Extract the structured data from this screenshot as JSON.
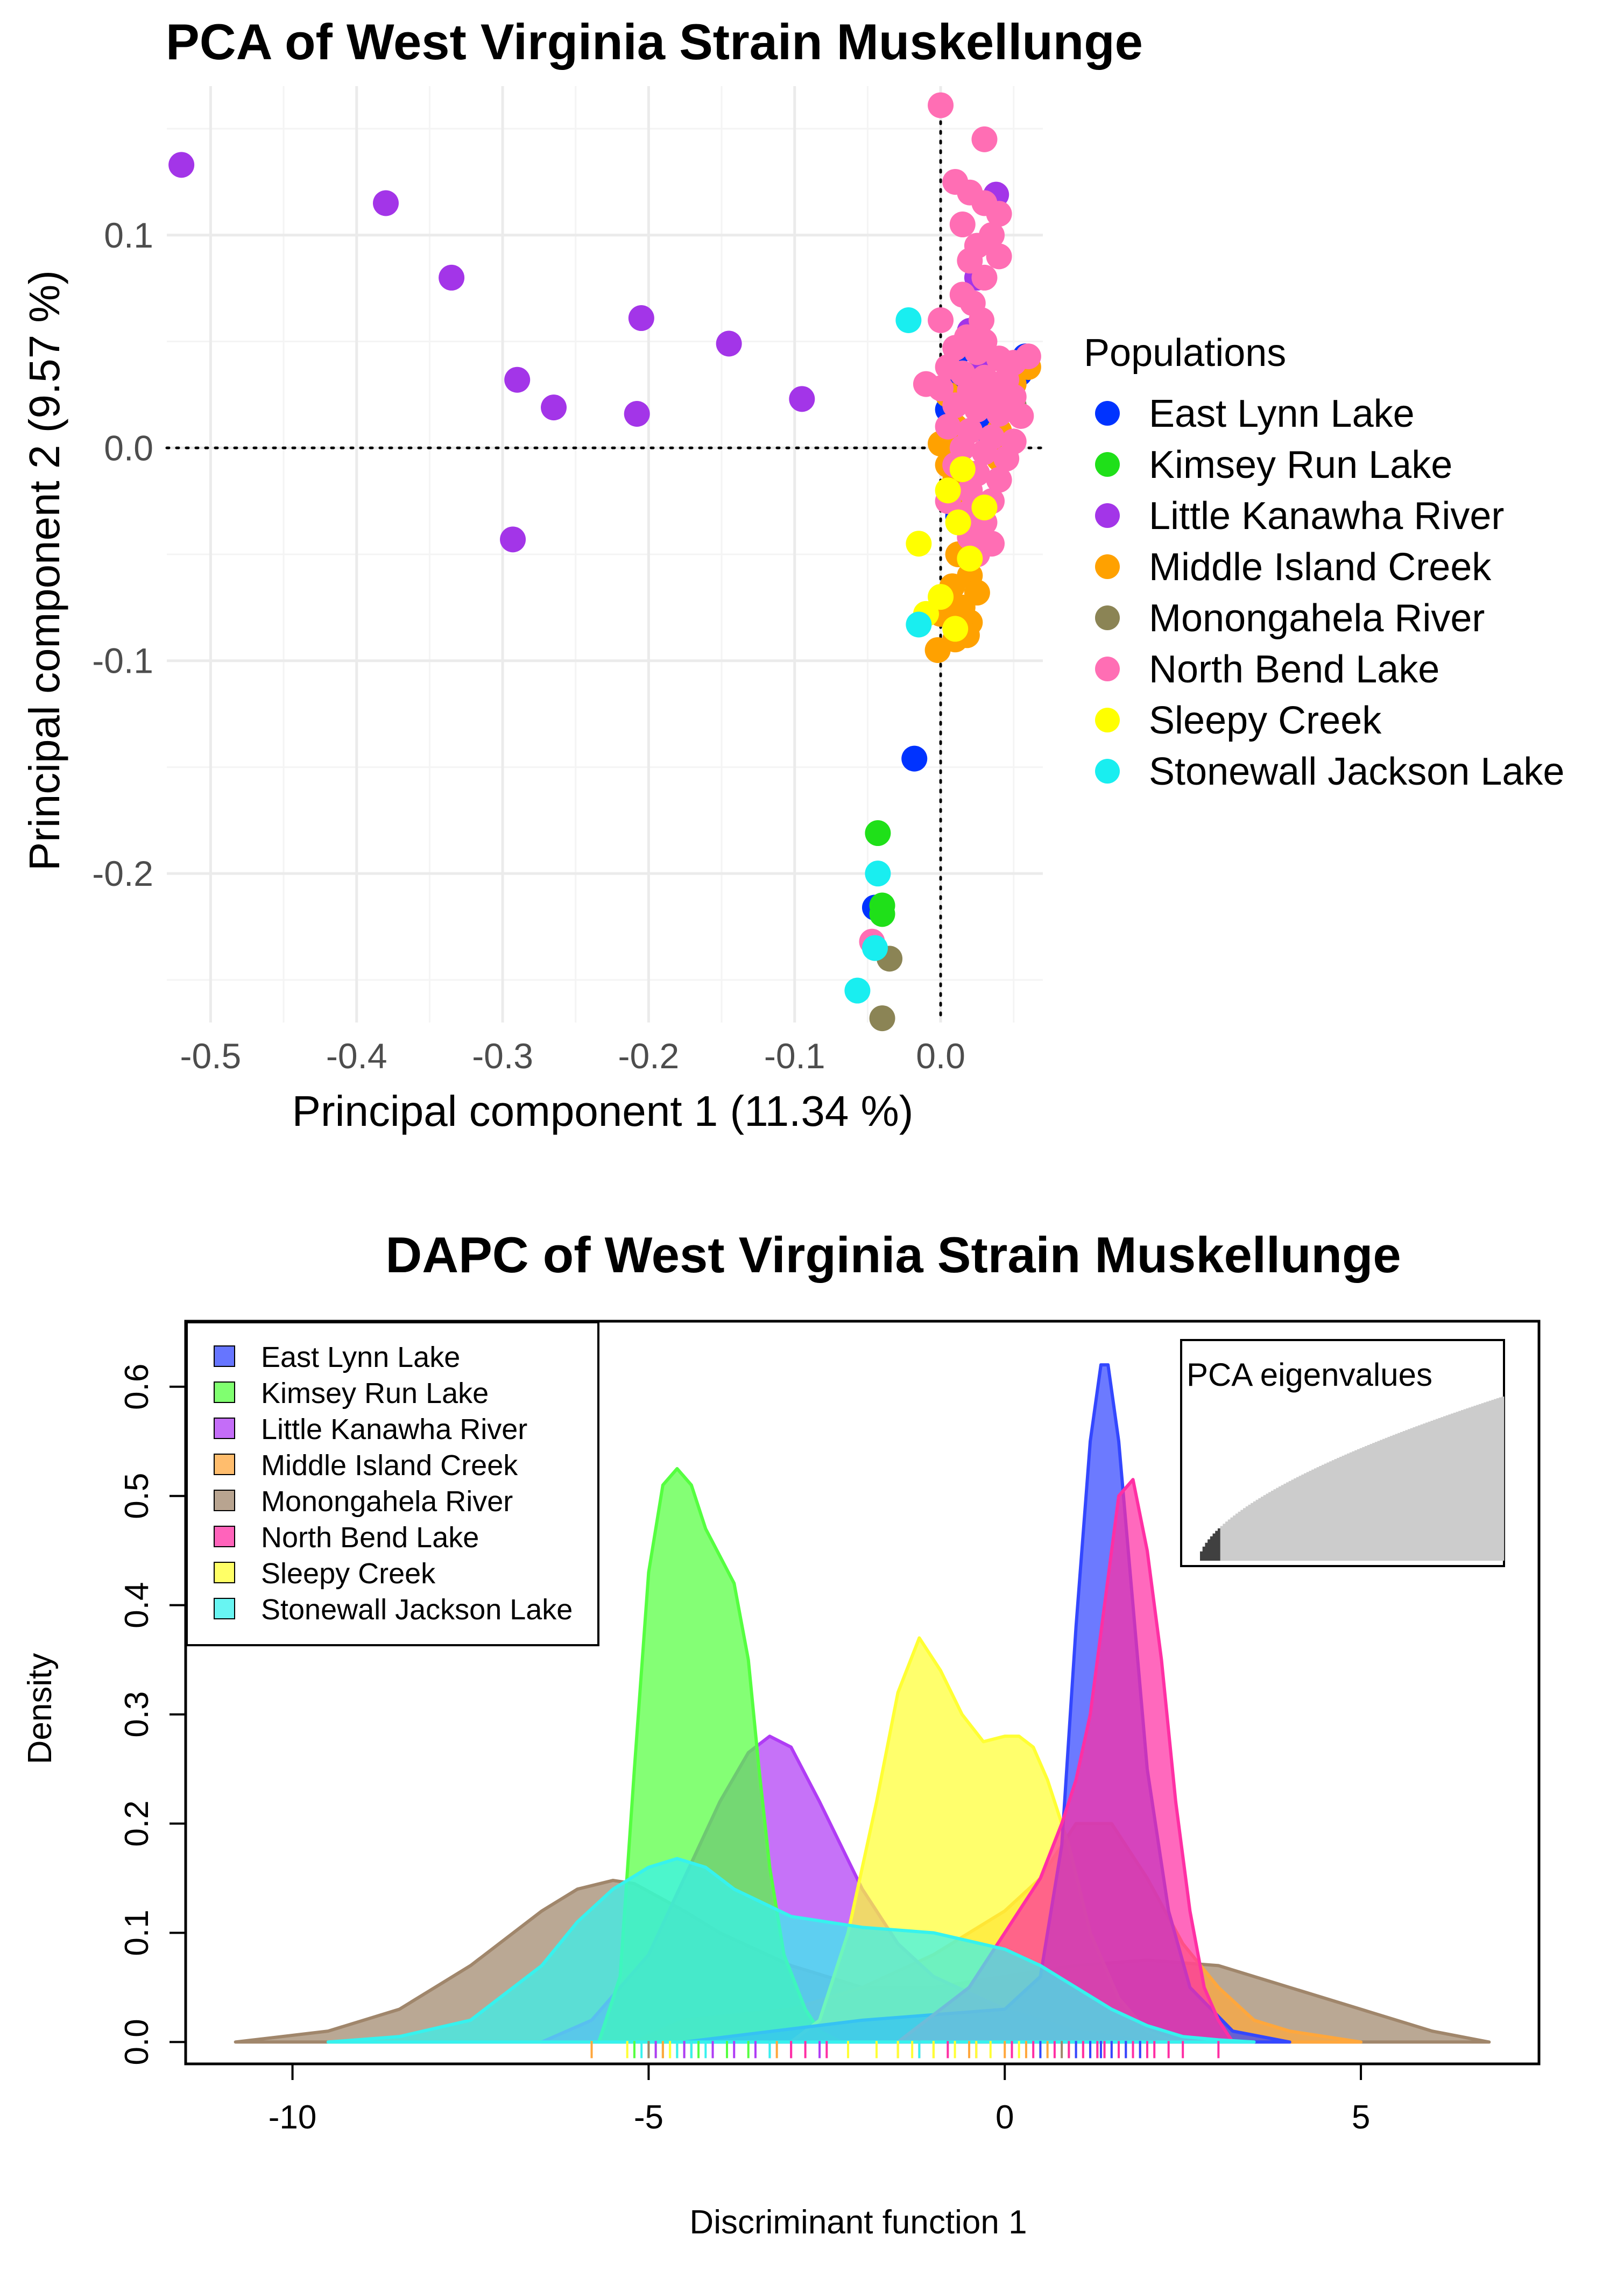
{
  "chart_data": [
    {
      "type": "scatter",
      "title": "PCA of West Virginia Strain Muskellunge",
      "xlabel": "Principal component 1 (11.34 %)",
      "ylabel": "Principal component 2 (9.57 %)",
      "xlim": [
        -0.53,
        0.07
      ],
      "ylim": [
        -0.27,
        0.17
      ],
      "x_ticks": [
        -0.5,
        -0.4,
        -0.3,
        -0.2,
        -0.1,
        0.0
      ],
      "x_tick_labels": [
        "-0.5",
        "-0.4",
        "-0.3",
        "-0.2",
        "-0.1",
        "0.0"
      ],
      "y_ticks": [
        -0.2,
        -0.1,
        0.0,
        0.1
      ],
      "y_tick_labels": [
        "-0.2",
        "-0.1",
        "0.0",
        "0.1"
      ],
      "grid": true,
      "reference_lines": "dotted lines at x = 0 and y = 0",
      "legend": {
        "title": "Populations",
        "position": "right"
      },
      "series": [
        {
          "name": "East Lynn Lake",
          "color": "#0033ff",
          "points": [
            [
              0.012,
              0.045
            ],
            [
              0.058,
              0.043
            ],
            [
              0.054,
              0.035
            ],
            [
              0.01,
              0.028
            ],
            [
              0.005,
              0.018
            ],
            [
              0.03,
              0.014
            ],
            [
              0.032,
              0.008
            ],
            [
              0.05,
              0.018
            ],
            [
              0.012,
              -0.032
            ],
            [
              -0.018,
              -0.146
            ],
            [
              -0.045,
              -0.216
            ]
          ]
        },
        {
          "name": "Kimsey Run Lake",
          "color": "#1fe019",
          "points": [
            [
              -0.043,
              -0.181
            ],
            [
              -0.04,
              -0.215
            ],
            [
              -0.04,
              -0.219
            ],
            [
              0.025,
              0.035
            ],
            [
              0.02,
              -0.022
            ]
          ]
        },
        {
          "name": "Little Kanawha River",
          "color": "#a335e8",
          "points": [
            [
              -0.52,
              0.133
            ],
            [
              -0.38,
              0.115
            ],
            [
              -0.335,
              0.08
            ],
            [
              -0.29,
              0.032
            ],
            [
              -0.265,
              0.019
            ],
            [
              -0.205,
              0.061
            ],
            [
              -0.208,
              0.016
            ],
            [
              -0.145,
              0.049
            ],
            [
              -0.095,
              0.023
            ],
            [
              -0.293,
              -0.043
            ],
            [
              0.038,
              0.119
            ],
            [
              0.025,
              0.08
            ],
            [
              0.02,
              0.055
            ],
            [
              0.03,
              0.04
            ]
          ]
        },
        {
          "name": "Middle Island Creek",
          "color": "#ffa100",
          "points": [
            [
              0.0,
              0.002
            ],
            [
              0.005,
              -0.008
            ],
            [
              0.01,
              -0.015
            ],
            [
              0.02,
              -0.012
            ],
            [
              0.015,
              -0.03
            ],
            [
              0.022,
              -0.04
            ],
            [
              0.012,
              -0.05
            ],
            [
              0.02,
              -0.06
            ],
            [
              0.008,
              -0.065
            ],
            [
              0.025,
              -0.068
            ],
            [
              0.015,
              -0.075
            ],
            [
              0.02,
              -0.082
            ],
            [
              0.0,
              -0.078
            ],
            [
              0.01,
              -0.09
            ],
            [
              0.018,
              -0.088
            ],
            [
              -0.002,
              -0.095
            ],
            [
              0.03,
              0.02
            ],
            [
              0.04,
              0.008
            ],
            [
              0.01,
              0.01
            ],
            [
              0.05,
              0.03
            ],
            [
              0.06,
              0.038
            ],
            [
              0.005,
              0.025
            ],
            [
              0.04,
              -0.005
            ],
            [
              0.03,
              -0.045
            ]
          ]
        },
        {
          "name": "Monongahela River",
          "color": "#8b8455",
          "points": [
            [
              -0.035,
              -0.24
            ],
            [
              -0.04,
              -0.268
            ],
            [
              0.05,
              0.02
            ]
          ]
        },
        {
          "name": "North Bend Lake",
          "color": "#ff6eb4",
          "points": [
            [
              0.0,
              0.161
            ],
            [
              0.03,
              0.145
            ],
            [
              0.01,
              0.125
            ],
            [
              0.02,
              0.12
            ],
            [
              0.03,
              0.115
            ],
            [
              0.04,
              0.11
            ],
            [
              0.035,
              0.1
            ],
            [
              0.015,
              0.105
            ],
            [
              0.025,
              0.095
            ],
            [
              0.04,
              0.09
            ],
            [
              0.02,
              0.088
            ],
            [
              0.03,
              0.08
            ],
            [
              0.015,
              0.072
            ],
            [
              0.022,
              0.068
            ],
            [
              0.028,
              0.06
            ],
            [
              0.0,
              0.06
            ],
            [
              0.018,
              0.052
            ],
            [
              0.03,
              0.05
            ],
            [
              0.01,
              0.047
            ],
            [
              0.025,
              0.045
            ],
            [
              0.04,
              0.042
            ],
            [
              0.05,
              0.04
            ],
            [
              0.06,
              0.043
            ],
            [
              0.005,
              0.038
            ],
            [
              0.015,
              0.035
            ],
            [
              0.03,
              0.033
            ],
            [
              0.045,
              0.032
            ],
            [
              -0.01,
              0.03
            ],
            [
              0.0,
              0.028
            ],
            [
              0.02,
              0.027
            ],
            [
              0.035,
              0.025
            ],
            [
              0.05,
              0.024
            ],
            [
              0.01,
              0.02
            ],
            [
              0.025,
              0.018
            ],
            [
              0.04,
              0.016
            ],
            [
              0.055,
              0.015
            ],
            [
              0.005,
              0.01
            ],
            [
              0.02,
              0.008
            ],
            [
              0.035,
              0.005
            ],
            [
              0.05,
              0.003
            ],
            [
              0.015,
              0.0
            ],
            [
              0.03,
              -0.002
            ],
            [
              0.045,
              -0.005
            ],
            [
              0.01,
              -0.008
            ],
            [
              0.025,
              -0.012
            ],
            [
              0.04,
              -0.015
            ],
            [
              0.02,
              -0.02
            ],
            [
              0.035,
              -0.025
            ],
            [
              0.005,
              -0.025
            ],
            [
              0.015,
              -0.032
            ],
            [
              0.03,
              -0.035
            ],
            [
              0.02,
              -0.042
            ],
            [
              0.035,
              -0.045
            ],
            [
              0.025,
              -0.05
            ],
            [
              0.02,
              -0.03
            ],
            [
              -0.047,
              -0.232
            ]
          ]
        },
        {
          "name": "Sleepy Creek",
          "color": "#ffff00",
          "points": [
            [
              0.012,
              -0.035
            ],
            [
              0.03,
              -0.028
            ],
            [
              -0.015,
              -0.045
            ],
            [
              0.02,
              -0.052
            ],
            [
              -0.01,
              -0.078
            ],
            [
              0.01,
              -0.085
            ],
            [
              0.0,
              -0.07
            ],
            [
              0.015,
              -0.01
            ],
            [
              0.005,
              -0.02
            ]
          ]
        },
        {
          "name": "Stonewall Jackson Lake",
          "color": "#19eef0",
          "points": [
            [
              -0.022,
              0.06
            ],
            [
              -0.015,
              -0.083
            ],
            [
              -0.043,
              -0.2
            ],
            [
              -0.045,
              -0.235
            ],
            [
              -0.057,
              -0.255
            ]
          ]
        }
      ]
    },
    {
      "type": "area",
      "title": "DAPC of West Virginia Strain Muskellunge",
      "xlabel": "Discriminant function 1",
      "ylabel": "Density",
      "xlim": [
        -11.5,
        7.5
      ],
      "ylim": [
        -0.02,
        0.66
      ],
      "x_ticks": [
        -10,
        -5,
        0,
        5
      ],
      "x_tick_labels": [
        "-10",
        "-5",
        "0",
        "5"
      ],
      "y_ticks": [
        0.0,
        0.1,
        0.2,
        0.3,
        0.4,
        0.5,
        0.6
      ],
      "y_tick_labels": [
        "0.0",
        "0.1",
        "0.2",
        "0.3",
        "0.4",
        "0.5",
        "0.6"
      ],
      "grid": false,
      "legend": {
        "position": "top-left"
      },
      "series": [
        {
          "name": "East Lynn Lake",
          "color": "#3347ff",
          "x": [
            -4.5,
            -2,
            0,
            0.5,
            0.8,
            1.0,
            1.2,
            1.35,
            1.45,
            1.6,
            1.8,
            2.0,
            2.3,
            2.6,
            3.2,
            4.0
          ],
          "y": [
            0.0,
            0.02,
            0.03,
            0.06,
            0.18,
            0.38,
            0.55,
            0.62,
            0.62,
            0.55,
            0.4,
            0.25,
            0.12,
            0.05,
            0.01,
            0.0
          ]
        },
        {
          "name": "Kimsey Run Lake",
          "color": "#55ff40",
          "x": [
            -5.7,
            -5.4,
            -5.2,
            -5.0,
            -4.8,
            -4.6,
            -4.4,
            -4.2,
            -4.0,
            -3.8,
            -3.6,
            -3.45,
            -3.3,
            -3.1,
            -2.8,
            -2.6,
            -2.3
          ],
          "y": [
            0.0,
            0.06,
            0.25,
            0.43,
            0.51,
            0.525,
            0.51,
            0.47,
            0.445,
            0.42,
            0.35,
            0.25,
            0.16,
            0.08,
            0.03,
            0.01,
            0.0
          ]
        },
        {
          "name": "Little Kanawha River",
          "color": "#b03cf5",
          "x": [
            -6.5,
            -5.8,
            -5.0,
            -4.5,
            -4.0,
            -3.6,
            -3.3,
            -3.0,
            -2.6,
            -2.3,
            -2.0,
            -1.5,
            -1.0,
            0.0,
            1.0,
            2.0
          ],
          "y": [
            0.0,
            0.02,
            0.08,
            0.15,
            0.22,
            0.265,
            0.28,
            0.27,
            0.22,
            0.18,
            0.14,
            0.09,
            0.06,
            0.03,
            0.01,
            0.0
          ]
        },
        {
          "name": "Middle Island Creek",
          "color": "#ffa73c",
          "x": [
            -5.2,
            -4.5,
            -3.0,
            -2.0,
            -1.0,
            -0.5,
            0.0,
            0.5,
            1.0,
            1.5,
            2.0,
            2.5,
            3.0,
            3.5,
            4.0,
            5.0
          ],
          "y": [
            0.0,
            0.02,
            0.03,
            0.05,
            0.08,
            0.1,
            0.12,
            0.15,
            0.2,
            0.2,
            0.15,
            0.09,
            0.05,
            0.02,
            0.01,
            0.0
          ]
        },
        {
          "name": "Monongahela River",
          "color": "#a0866b",
          "x": [
            -10.8,
            -9.5,
            -8.5,
            -7.5,
            -6.5,
            -6.0,
            -5.5,
            -5.2,
            -4.5,
            -4.0,
            -3.0,
            -2.0,
            -1.0,
            0.0,
            1.0,
            2.0,
            3.0,
            4.0,
            5.0,
            6.0,
            6.8
          ],
          "y": [
            0.0,
            0.01,
            0.03,
            0.07,
            0.12,
            0.14,
            0.148,
            0.145,
            0.12,
            0.1,
            0.07,
            0.05,
            0.05,
            0.06,
            0.07,
            0.075,
            0.07,
            0.05,
            0.03,
            0.01,
            0.0
          ]
        },
        {
          "name": "North Bend Lake",
          "color": "#ff2fa4",
          "x": [
            -1.5,
            -0.5,
            0.0,
            0.5,
            0.8,
            1.0,
            1.2,
            1.4,
            1.6,
            1.8,
            2.0,
            2.2,
            2.4,
            2.6,
            2.8,
            3.0,
            3.2
          ],
          "y": [
            0.0,
            0.05,
            0.1,
            0.15,
            0.2,
            0.24,
            0.3,
            0.4,
            0.5,
            0.515,
            0.45,
            0.35,
            0.22,
            0.12,
            0.05,
            0.02,
            0.0
          ]
        },
        {
          "name": "Sleepy Creek",
          "color": "#ffff33",
          "x": [
            -3.0,
            -2.6,
            -2.2,
            -1.8,
            -1.5,
            -1.2,
            -0.9,
            -0.6,
            -0.3,
            0.0,
            0.2,
            0.4,
            0.6,
            0.9,
            1.2,
            1.6,
            2.0,
            2.4
          ],
          "y": [
            0.0,
            0.02,
            0.1,
            0.22,
            0.32,
            0.37,
            0.34,
            0.3,
            0.275,
            0.28,
            0.28,
            0.27,
            0.24,
            0.18,
            0.1,
            0.04,
            0.01,
            0.0
          ]
        },
        {
          "name": "Stonewall Jackson Lake",
          "color": "#36f2ee",
          "x": [
            -9.5,
            -8.5,
            -7.5,
            -6.5,
            -6.0,
            -5.5,
            -5.0,
            -4.6,
            -4.2,
            -3.8,
            -3.0,
            -2.0,
            -1.0,
            0.0,
            0.5,
            1.0,
            1.5,
            2.0,
            2.5,
            3.0,
            3.5
          ],
          "y": [
            0.0,
            0.005,
            0.02,
            0.07,
            0.11,
            0.14,
            0.16,
            0.168,
            0.16,
            0.14,
            0.115,
            0.105,
            0.1,
            0.085,
            0.07,
            0.05,
            0.03,
            0.015,
            0.005,
            0.002,
            0.0
          ]
        }
      ],
      "rug": {
        "description": "colored tick marks along x-axis, one per individual",
        "values_by_series": {
          "Kimsey Run Lake": [
            -5.2,
            -5.0,
            -4.9,
            -4.8,
            -4.7,
            -4.6,
            -4.5,
            -4.4,
            -4.3,
            -4.1,
            -3.9,
            -3.6
          ],
          "Little Kanawha River": [
            -4.9,
            -4.5,
            -4.1,
            -3.8,
            -3.5,
            -3.3,
            -3.0,
            -2.6
          ],
          "Middle Island Creek": [
            -5.8,
            -4.8,
            -3.2,
            -1.5,
            -1.0,
            -0.5,
            0.0,
            0.3,
            0.6,
            0.9,
            1.1,
            1.3
          ],
          "Monongahela River": [
            -5.0,
            -4.4,
            0.8
          ],
          "North Bend Lake": [
            -3.0,
            -2.8,
            -2.5,
            -1.2,
            -0.8,
            -0.4,
            0.1,
            0.4,
            0.7,
            0.9,
            1.0,
            1.1,
            1.2,
            1.3,
            1.4,
            1.5,
            1.6,
            1.7,
            1.8,
            1.9,
            2.0,
            2.1,
            2.3,
            2.5,
            3.0
          ],
          "Sleepy Creek": [
            -5.3,
            -4.7,
            -2.2,
            -1.8,
            -1.5,
            -1.3,
            -1.0,
            -0.7,
            -0.4,
            -0.2,
            0.2,
            0.5
          ],
          "Stonewall Jackson Lake": [
            -5.1,
            -4.6,
            -4.4,
            -4.2,
            -3.3,
            -1.2
          ],
          "East Lynn Lake": [
            0.5,
            1.0,
            1.2,
            1.35,
            1.5,
            1.7,
            1.9
          ]
        }
      },
      "inset": {
        "title": "PCA eigenvalues",
        "type": "cumulative bar",
        "n_bars": 120,
        "n_retained": 8,
        "retained_color": "#404040",
        "other_color": "#cccccc"
      }
    }
  ]
}
